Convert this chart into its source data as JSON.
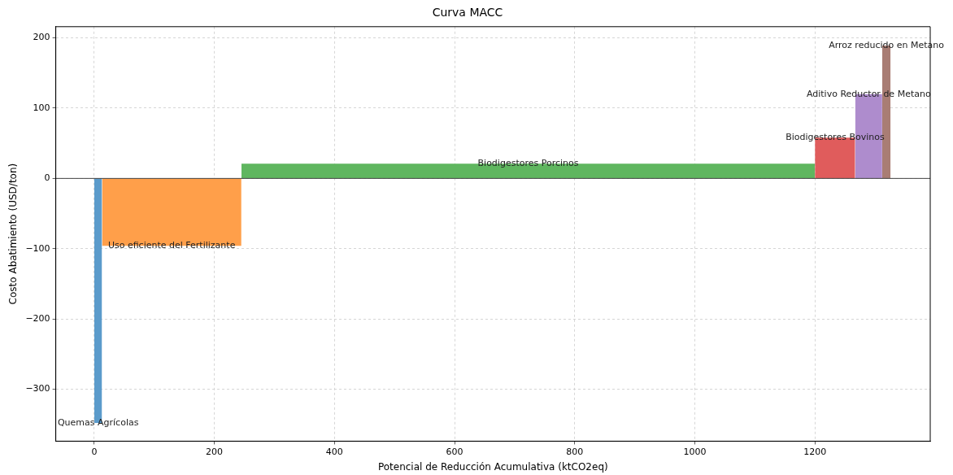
{
  "chart_data": {
    "type": "area",
    "title": "Curva MACC",
    "xlabel": "Potencial de Reducción Acumulativa (ktCO2eq)",
    "ylabel": "Costo Abatimiento (USD/ton)",
    "series": [
      {
        "name": "Quemas Agrícolas",
        "color": "#5b9bcb",
        "x": [
          0,
          13
        ],
        "values": [
          -348,
          -348
        ]
      },
      {
        "name": "Uso eficiente del Fertilizante",
        "color": "#ff9f4a",
        "x": [
          13,
          245
        ],
        "values": [
          -96,
          -96
        ]
      },
      {
        "name": "Biodigestores Porcinos",
        "color": "#5fb65f",
        "x": [
          245,
          1200
        ],
        "values": [
          21,
          21
        ]
      },
      {
        "name": "Biodigestores Bovinos",
        "color": "#e05c5c",
        "x": [
          1200,
          1267
        ],
        "values": [
          58,
          58
        ]
      },
      {
        "name": "Aditivo Reductor de Metano",
        "color": "#ae8ccd",
        "x": [
          1267,
          1312
        ],
        "values": [
          120,
          120
        ]
      },
      {
        "name": "Arroz reducido en Metano",
        "color": "#a97d74",
        "x": [
          1312,
          1326
        ],
        "values": [
          189,
          189
        ]
      }
    ],
    "xlim": [
      -64,
      1392
    ],
    "ylim": [
      -374,
      216
    ],
    "xticks": [
      0,
      200,
      400,
      600,
      800,
      1000,
      1200
    ],
    "yticks": [
      -300,
      -200,
      -100,
      0,
      100,
      200
    ],
    "ref_lines": [
      {
        "axis": "y",
        "value": 0,
        "color": "#444444"
      }
    ],
    "grid": true,
    "legend": false
  }
}
